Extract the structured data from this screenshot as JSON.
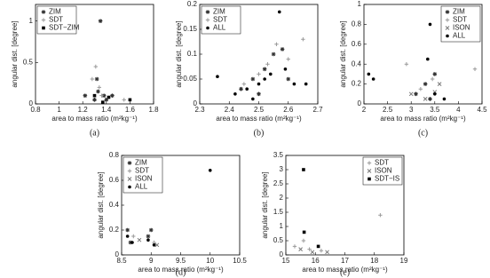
{
  "chart_data": [
    {
      "type": "scatter",
      "caption": "(a)",
      "xlabel": "area to mass ratio (m²kg⁻¹)",
      "ylabel": "angular dist. [degree]",
      "xlim": [
        0.8,
        1.8
      ],
      "xticks": [
        0.8,
        1,
        1.2,
        1.4,
        1.6,
        1.8
      ],
      "ylim": [
        0,
        1.2
      ],
      "yticks": [
        0,
        0.5,
        1
      ],
      "legend": "upper left",
      "series": [
        {
          "name": "ZIM",
          "color": "#333333",
          "marker": "star",
          "x": [
            1.22,
            1.3,
            1.33,
            1.35,
            1.38,
            1.4,
            1.32,
            1.45
          ],
          "values": [
            0.1,
            0.05,
            0.15,
            1.0,
            0.1,
            0.05,
            0.3,
            0.1
          ]
        },
        {
          "name": "SDT",
          "color": "#999999",
          "marker": "plus",
          "x": [
            1.28,
            1.31,
            1.34,
            1.36,
            1.55
          ],
          "values": [
            0.3,
            0.45,
            0.2,
            0.1,
            0.05
          ]
        },
        {
          "name": "SDT−ZIM",
          "color": "#000000",
          "marker": "square",
          "x": [
            1.3,
            1.37,
            1.6,
            1.42
          ],
          "values": [
            0.1,
            0.02,
            0.05,
            0.08
          ]
        }
      ]
    },
    {
      "type": "scatter",
      "caption": "(b)",
      "xlabel": "area to mass ratio (m²kg⁻¹)",
      "ylabel": "angular dist. [degree]",
      "xlim": [
        2.3,
        2.7
      ],
      "xticks": [
        2.3,
        2.4,
        2.5,
        2.6,
        2.7
      ],
      "ylim": [
        0,
        0.2
      ],
      "yticks": [
        0,
        0.05,
        0.1,
        0.15,
        0.2
      ],
      "legend": "upper left",
      "series": [
        {
          "name": "ZIM",
          "color": "#333333",
          "marker": "star",
          "x": [
            2.44,
            2.48,
            2.52,
            2.55,
            2.58,
            2.6,
            2.5
          ],
          "values": [
            0.03,
            0.05,
            0.07,
            0.1,
            0.11,
            0.05,
            0.02
          ]
        },
        {
          "name": "SDT",
          "color": "#999999",
          "marker": "plus",
          "x": [
            2.45,
            2.5,
            2.53,
            2.56,
            2.65,
            2.6
          ],
          "values": [
            0.04,
            0.06,
            0.08,
            0.12,
            0.13,
            0.09
          ]
        },
        {
          "name": "ALL",
          "color": "#000000",
          "marker": "dot",
          "x": [
            2.36,
            2.42,
            2.46,
            2.5,
            2.54,
            2.57,
            2.59,
            2.62,
            2.66,
            2.48,
            2.52
          ],
          "values": [
            0.055,
            0.02,
            0.03,
            0.04,
            0.06,
            0.185,
            0.07,
            0.04,
            0.04,
            0.01,
            0.05
          ]
        }
      ]
    },
    {
      "type": "scatter",
      "caption": "(c)",
      "xlabel": "area to mass ratio (m²kg⁻¹)",
      "ylabel": "angular dist. [degree]",
      "xlim": [
        2,
        4.5
      ],
      "xticks": [
        2,
        2.5,
        3,
        3.5,
        4,
        4.5
      ],
      "ylim": [
        0,
        1
      ],
      "yticks": [
        0,
        0.2,
        0.4,
        0.6,
        0.8,
        1
      ],
      "legend": "upper right",
      "series": [
        {
          "name": "ZIM",
          "color": "#333333",
          "marker": "star",
          "x": [
            3.1,
            3.3,
            3.5,
            3.4
          ],
          "values": [
            0.1,
            0.2,
            0.3,
            0.05
          ]
        },
        {
          "name": "SDT",
          "color": "#999999",
          "marker": "plus",
          "x": [
            2.9,
            3.2,
            3.45,
            4.35
          ],
          "values": [
            0.4,
            0.15,
            0.25,
            0.35
          ]
        },
        {
          "name": "ISON",
          "color": "#777777",
          "marker": "x",
          "x": [
            3.0,
            3.3,
            3.6,
            3.5
          ],
          "values": [
            0.1,
            0.05,
            0.2,
            0.12
          ]
        },
        {
          "name": "ALL",
          "color": "#000000",
          "marker": "dot",
          "x": [
            2.1,
            2.2,
            3.4,
            3.35,
            3.5,
            3.7
          ],
          "values": [
            0.3,
            0.25,
            0.8,
            0.45,
            0.1,
            0.05
          ]
        }
      ]
    },
    {
      "type": "scatter",
      "caption": "(d)",
      "xlabel": "area to mass ratio (m²kg⁻¹)",
      "ylabel": "angular dist. [degree]",
      "xlim": [
        8.5,
        10.5
      ],
      "xticks": [
        8.5,
        9,
        9.5,
        10,
        10.5
      ],
      "ylim": [
        0,
        0.8
      ],
      "yticks": [
        0,
        0.2,
        0.4,
        0.6,
        0.8
      ],
      "legend": "upper left",
      "series": [
        {
          "name": "ZIM",
          "color": "#333333",
          "marker": "star",
          "x": [
            8.6,
            8.65,
            8.95,
            9.0
          ],
          "values": [
            0.2,
            0.1,
            0.15,
            0.2
          ]
        },
        {
          "name": "SDT",
          "color": "#999999",
          "marker": "plus",
          "x": [
            8.7,
            9.05
          ],
          "values": [
            0.15,
            0.1
          ]
        },
        {
          "name": "ISON",
          "color": "#777777",
          "marker": "x",
          "x": [
            8.8,
            9.1
          ],
          "values": [
            0.12,
            0.08
          ]
        },
        {
          "name": "ALL",
          "color": "#000000",
          "marker": "dot",
          "x": [
            8.6,
            8.68,
            8.95,
            9.05,
            10.0
          ],
          "values": [
            0.15,
            0.1,
            0.12,
            0.08,
            0.68
          ]
        }
      ]
    },
    {
      "type": "scatter",
      "caption": "(e)",
      "xlabel": "area to mass ratio (m²kg⁻¹)",
      "ylabel": "angular dist. [degree]",
      "xlim": [
        15,
        19
      ],
      "xticks": [
        15,
        16,
        17,
        18,
        19
      ],
      "ylim": [
        0,
        3.5
      ],
      "yticks": [
        0,
        0.5,
        1,
        1.5,
        2,
        2.5,
        3,
        3.5
      ],
      "legend": "upper right",
      "series": [
        {
          "name": "SDT",
          "color": "#999999",
          "marker": "plus",
          "x": [
            15.3,
            15.6,
            15.8,
            16.2,
            18.2
          ],
          "values": [
            0.3,
            0.5,
            0.2,
            0.15,
            1.4
          ]
        },
        {
          "name": "ISON",
          "color": "#777777",
          "marker": "x",
          "x": [
            15.5,
            15.9,
            16.4
          ],
          "values": [
            0.2,
            0.1,
            0.1
          ]
        },
        {
          "name": "SDT−IS",
          "color": "#000000",
          "marker": "square",
          "x": [
            15.6,
            15.62,
            16.1
          ],
          "values": [
            3.0,
            0.8,
            0.3
          ]
        }
      ]
    }
  ]
}
